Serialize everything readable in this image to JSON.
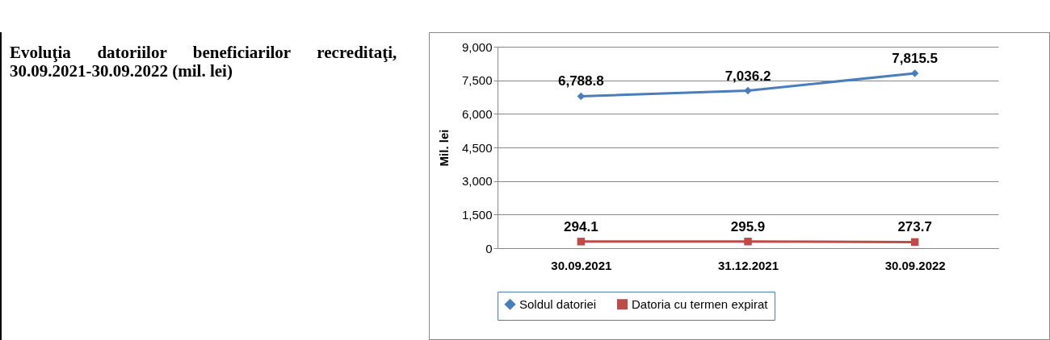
{
  "chart_data": {
    "type": "line",
    "title": "Evoluţia datoriilor beneficiarilor recreditaţi, 30.09.2021-30.09.2022 (mil. lei)",
    "ylabel": "Mil. lei",
    "categories": [
      "30.09.2021",
      "31.12.2021",
      "30.09.2022"
    ],
    "series": [
      {
        "name": "Soldul datoriei",
        "color": "#4a7ebb",
        "marker": "diamond",
        "values": [
          6788.8,
          7036.2,
          7815.5
        ],
        "value_labels": [
          "6,788.8",
          "7,036.2",
          "7,815.5"
        ]
      },
      {
        "name": "Datoria cu termen expirat",
        "color": "#be4b48",
        "marker": "square",
        "values": [
          294.1,
          295.9,
          273.7
        ],
        "value_labels": [
          "294.1",
          "295.9",
          "273.7"
        ]
      }
    ],
    "ylim": [
      0,
      9000
    ],
    "yticks": [
      0,
      {
        "value": 1500,
        "label": "1,500"
      },
      {
        "value": 3000,
        "label": "3,000"
      },
      {
        "value": 4500,
        "label": "4,500"
      },
      {
        "value": 6000,
        "label": "6,000"
      },
      {
        "value": 7500,
        "label": "7,500"
      },
      {
        "value": 9000,
        "label": "9,000"
      }
    ],
    "grid": "y",
    "legend": "bottom"
  }
}
